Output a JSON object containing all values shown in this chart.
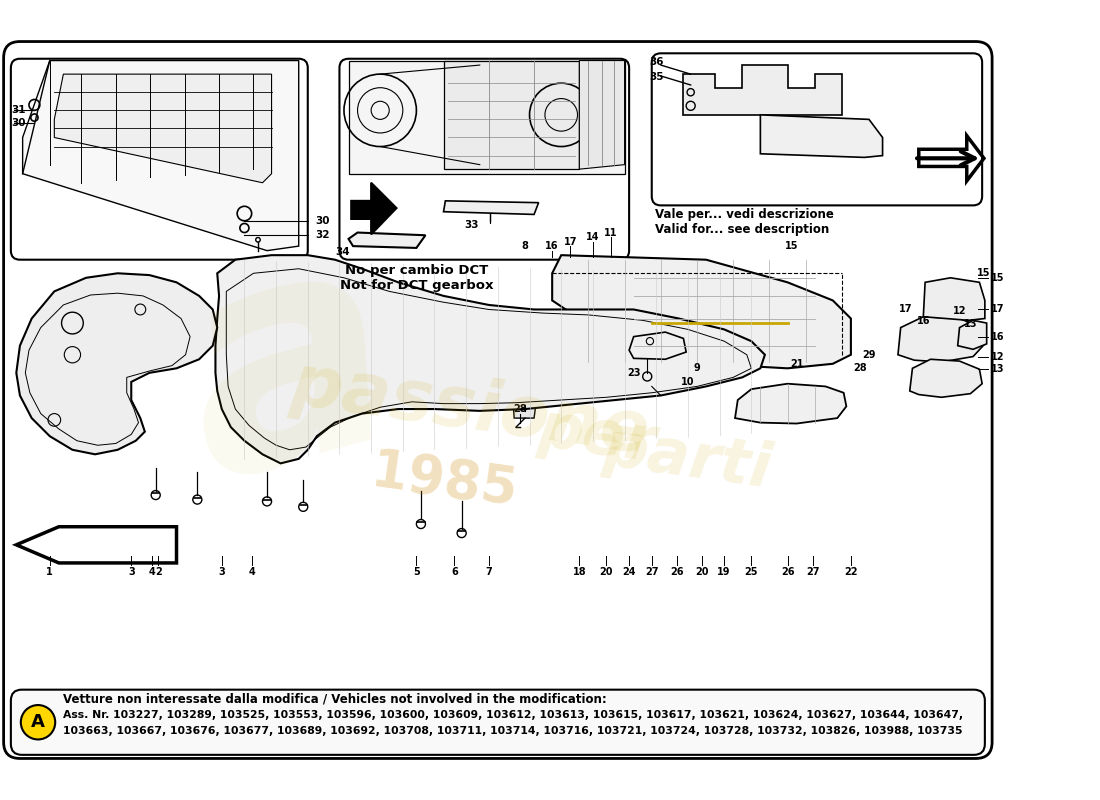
{
  "bg_color": "#ffffff",
  "note_dct": "No per cambio DCT\nNot for DCT gearbox",
  "note_vale": "Vale per... vedi descrizione\nValid for... see description",
  "footer_title": "Vetture non interessate dalla modifica / Vehicles not involved in the modification:",
  "footer_line1": "Ass. Nr. 103227, 103289, 103525, 103553, 103596, 103600, 103609, 103612, 103613, 103615, 103617, 103621, 103624, 103627, 103644, 103647,",
  "footer_line2": "103663, 103667, 103676, 103677, 103689, 103692, 103708, 103711, 103714, 103716, 103721, 103724, 103728, 103732, 103826, 103988, 103735",
  "badge_label": "A",
  "badge_color": "#FFD700",
  "wm_color": "#C8A800",
  "wm_alpha": 0.13
}
